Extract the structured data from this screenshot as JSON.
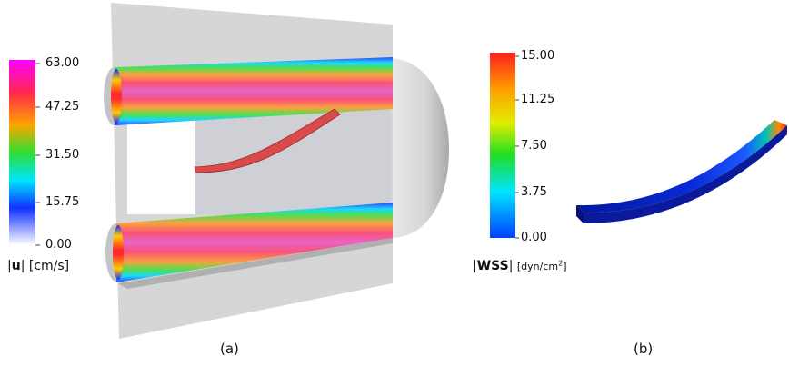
{
  "panel_a": {
    "colorbar": {
      "ticks": [
        "63.00",
        "47.25",
        "31.50",
        "15.75",
        "0.00"
      ],
      "quantity_symbol": "u",
      "unit": "[cm/s]",
      "colors": [
        "#ff00ff",
        "#ff2a2a",
        "#ffa500",
        "#22dd22",
        "#00e5ff",
        "#1030ff",
        "#ffffff"
      ]
    },
    "caption": "(a)"
  },
  "panel_b": {
    "colorbar": {
      "ticks": [
        "15.00",
        "11.25",
        "7.50",
        "3.75",
        "0.00"
      ],
      "quantity_symbol": "WSS",
      "unit_prefix": "[dyn/cm",
      "unit_sup": "2",
      "unit_suffix": "]",
      "colors": [
        "#ff1e1e",
        "#ffa000",
        "#e0ee00",
        "#22dd22",
        "#00e5ff",
        "#0040ff"
      ]
    },
    "caption": "(b)"
  }
}
